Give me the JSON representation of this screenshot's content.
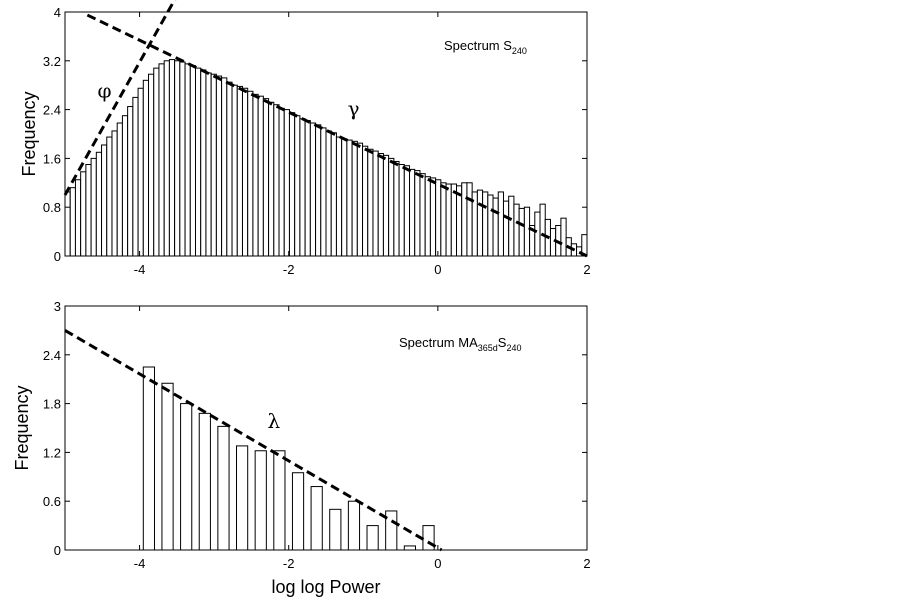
{
  "chart_data": [
    {
      "type": "bar",
      "title": "",
      "annotation": {
        "prefix": "Spectrum S",
        "subscript": "240"
      },
      "xlabel": "",
      "ylabel": "Frequency",
      "xlim": [
        -5,
        2
      ],
      "ylim": [
        0,
        4
      ],
      "x_ticks": [
        -4,
        -2,
        0,
        2
      ],
      "y_ticks": [
        0,
        0.8,
        1.6,
        2.4,
        3.2,
        4
      ],
      "y_tick_labels": [
        "0",
        "0.8",
        "1.6",
        "2.4",
        "3.2",
        "4"
      ],
      "bar_width": 0.07,
      "x": [
        -4.965,
        -4.895,
        -4.825,
        -4.755,
        -4.685,
        -4.615,
        -4.545,
        -4.475,
        -4.405,
        -4.335,
        -4.265,
        -4.195,
        -4.125,
        -4.055,
        -3.985,
        -3.915,
        -3.845,
        -3.775,
        -3.705,
        -3.635,
        -3.565,
        -3.495,
        -3.425,
        -3.355,
        -3.285,
        -3.215,
        -3.145,
        -3.075,
        -3.005,
        -2.935,
        -2.865,
        -2.795,
        -2.725,
        -2.655,
        -2.585,
        -2.515,
        -2.445,
        -2.375,
        -2.305,
        -2.235,
        -2.165,
        -2.095,
        -2.025,
        -1.955,
        -1.885,
        -1.815,
        -1.745,
        -1.675,
        -1.605,
        -1.535,
        -1.465,
        -1.395,
        -1.325,
        -1.255,
        -1.185,
        -1.115,
        -1.045,
        -0.975,
        -0.905,
        -0.835,
        -0.765,
        -0.695,
        -0.625,
        -0.555,
        -0.485,
        -0.415,
        -0.345,
        -0.275,
        -0.205,
        -0.135,
        -0.065,
        0.005,
        0.075,
        0.145,
        0.215,
        0.285,
        0.355,
        0.425,
        0.495,
        0.565,
        0.635,
        0.705,
        0.775,
        0.845,
        0.915,
        0.985,
        1.055,
        1.125,
        1.195,
        1.265,
        1.335,
        1.405,
        1.475,
        1.545,
        1.615,
        1.685,
        1.755,
        1.825,
        1.895,
        1.965
      ],
      "values": [
        1.05,
        1.12,
        1.25,
        1.38,
        1.5,
        1.6,
        1.7,
        1.82,
        1.95,
        2.05,
        2.18,
        2.3,
        2.45,
        2.6,
        2.75,
        2.88,
        2.98,
        3.08,
        3.15,
        3.2,
        3.22,
        3.2,
        3.18,
        3.15,
        3.12,
        3.08,
        3.05,
        3.0,
        2.98,
        2.95,
        2.92,
        2.85,
        2.8,
        2.78,
        2.75,
        2.7,
        2.65,
        2.62,
        2.58,
        2.52,
        2.48,
        2.42,
        2.4,
        2.35,
        2.3,
        2.25,
        2.22,
        2.18,
        2.15,
        2.1,
        2.05,
        2.02,
        1.95,
        1.92,
        1.9,
        1.88,
        1.85,
        1.8,
        1.75,
        1.72,
        1.68,
        1.65,
        1.6,
        1.55,
        1.5,
        1.48,
        1.42,
        1.4,
        1.35,
        1.3,
        1.28,
        1.25,
        1.2,
        1.18,
        1.18,
        1.15,
        1.2,
        1.2,
        1.05,
        1.08,
        1.05,
        1.0,
        0.95,
        1.05,
        0.9,
        0.98,
        0.85,
        0.78,
        0.8,
        0.5,
        0.72,
        0.85,
        0.6,
        0.45,
        0.5,
        0.62,
        0.3,
        0.2,
        0.15,
        0.35
      ],
      "fits": [
        {
          "label": "φ",
          "x": [
            -5,
            -3.3
          ],
          "y": [
            1.0,
            4.7
          ],
          "label_at": [
            -4.47,
            2.6
          ]
        },
        {
          "label": "γ",
          "x": [
            -4.7,
            2.0
          ],
          "y": [
            3.95,
            0.0
          ],
          "label_at": [
            -1.13,
            2.3
          ]
        }
      ]
    },
    {
      "type": "bar",
      "title": "",
      "annotation": {
        "prefix": "Spectrum MA",
        "subscript": "365d",
        "middle": "S",
        "subscript2": "240"
      },
      "xlabel": "log log Power",
      "ylabel": "Frequency",
      "xlim": [
        -5,
        2
      ],
      "ylim": [
        0,
        3
      ],
      "x_ticks": [
        -4,
        -2,
        0,
        2
      ],
      "y_ticks": [
        0,
        0.6,
        1.2,
        1.8,
        2.4,
        3
      ],
      "y_tick_labels": [
        "0",
        "0.6",
        "1.2",
        "1.8",
        "2.4",
        "3"
      ],
      "bar_width": 0.15,
      "x": [
        -3.875,
        -3.625,
        -3.375,
        -3.125,
        -2.875,
        -2.625,
        -2.375,
        -2.125,
        -1.875,
        -1.625,
        -1.375,
        -1.125,
        -0.875,
        -0.625,
        -0.375,
        -0.125,
        0.125
      ],
      "values": [
        2.25,
        2.05,
        1.8,
        1.68,
        1.52,
        1.28,
        1.22,
        1.22,
        0.95,
        0.78,
        0.5,
        0.6,
        0.3,
        0.48,
        0.05,
        0.3,
        0.0
      ],
      "fits": [
        {
          "label": "λ",
          "x": [
            -5,
            0.05
          ],
          "y": [
            2.7,
            0.0
          ],
          "label_at": [
            -2.2,
            1.5
          ]
        }
      ]
    }
  ]
}
